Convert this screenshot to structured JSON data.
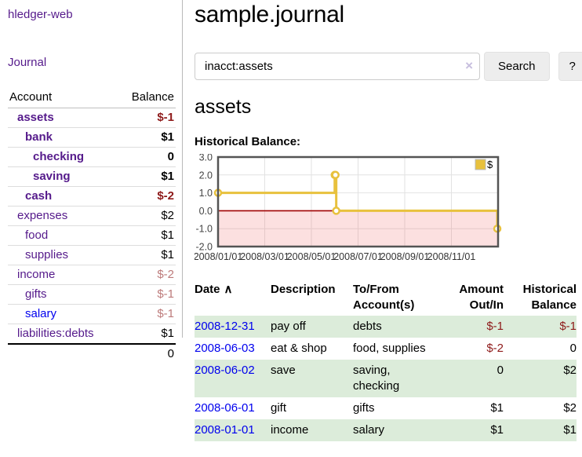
{
  "app": {
    "title": "hledger-web"
  },
  "sidebar": {
    "journal_link": "Journal",
    "table": {
      "headers": {
        "account": "Account",
        "balance": "Balance"
      },
      "rows": [
        {
          "name": "assets",
          "balance": "$-1",
          "depth": 1,
          "bold": true,
          "neg": "strong",
          "link": "purple"
        },
        {
          "name": "bank",
          "balance": "$1",
          "depth": 2,
          "bold": true,
          "neg": "none",
          "link": "purple"
        },
        {
          "name": "checking",
          "balance": "0",
          "depth": 3,
          "bold": true,
          "neg": "none",
          "link": "purple"
        },
        {
          "name": "saving",
          "balance": "$1",
          "depth": 3,
          "bold": true,
          "neg": "none",
          "link": "purple"
        },
        {
          "name": "cash",
          "balance": "$-2",
          "depth": 2,
          "bold": true,
          "neg": "strong",
          "link": "purple"
        },
        {
          "name": "expenses",
          "balance": "$2",
          "depth": 1,
          "bold": false,
          "neg": "none",
          "link": "purple"
        },
        {
          "name": "food",
          "balance": "$1",
          "depth": 2,
          "bold": false,
          "neg": "none",
          "link": "purple"
        },
        {
          "name": "supplies",
          "balance": "$1",
          "depth": 2,
          "bold": false,
          "neg": "none",
          "link": "purple"
        },
        {
          "name": "income",
          "balance": "$-2",
          "depth": 1,
          "bold": false,
          "neg": "muted",
          "link": "purple"
        },
        {
          "name": "gifts",
          "balance": "$-1",
          "depth": 2,
          "bold": false,
          "neg": "muted",
          "link": "purple"
        },
        {
          "name": "salary",
          "balance": "$-1",
          "depth": 2,
          "bold": false,
          "neg": "muted",
          "link": "blue"
        },
        {
          "name": "liabilities:debts",
          "balance": "$1",
          "depth": 1,
          "bold": false,
          "neg": "none",
          "link": "purple"
        }
      ],
      "total": "0"
    }
  },
  "header": {
    "title": "sample.journal"
  },
  "search": {
    "value": "inacct:assets",
    "clear_icon": "×",
    "button": "Search",
    "help_button": "?"
  },
  "account_page": {
    "title": "assets",
    "chart_label": "Historical Balance:"
  },
  "chart_data": {
    "type": "line",
    "step": true,
    "title": "",
    "xlabel": "",
    "ylabel": "",
    "x_range": [
      "2008-01-01",
      "2009-01-01"
    ],
    "ylim": [
      -2,
      3
    ],
    "y_ticks": [
      {
        "label": "3.0",
        "value": 3
      },
      {
        "label": "2.0",
        "value": 2
      },
      {
        "label": "1.0",
        "value": 1
      },
      {
        "label": "0.0",
        "value": 0
      },
      {
        "label": "-1.0",
        "value": -1
      },
      {
        "label": "-2.0",
        "value": -2
      }
    ],
    "x_ticks": [
      {
        "label": "2008/01/01",
        "month": 0
      },
      {
        "label": "2008/03/01",
        "month": 2
      },
      {
        "label": "2008/05/01",
        "month": 4
      },
      {
        "label": "2008/07/01",
        "month": 6
      },
      {
        "label": "2008/09/01",
        "month": 8
      },
      {
        "label": "2008/11/01",
        "month": 10
      }
    ],
    "grid_months": [
      2,
      4,
      6,
      8,
      10
    ],
    "grid_values": [
      2,
      1,
      -1
    ],
    "series": [
      {
        "name": "$",
        "color": "#e8c13d",
        "points": [
          [
            "2008-01-01",
            1
          ],
          [
            "2008-06-01",
            2
          ],
          [
            "2008-06-02",
            2
          ],
          [
            "2008-06-03",
            0
          ],
          [
            "2008-12-31",
            -1
          ]
        ]
      }
    ],
    "legend": {
      "label": "$",
      "position": "top-right"
    },
    "colors": {
      "border": "#545454",
      "grid": "#e2e2e2",
      "zero_line": "#a00000",
      "negative_fill": "rgba(243,115,115,0.22)",
      "axis_text": "#444444"
    }
  },
  "register": {
    "sort_icon": "∧",
    "headers": {
      "date": "Date",
      "description": "Description",
      "accounts": "To/From Account(s)",
      "amount": "Amount Out/In",
      "balance": "Historical Balance"
    },
    "rows": [
      {
        "date": "2008-12-31",
        "description": "pay off",
        "accounts": "debts",
        "amount": "$-1",
        "balance": "$-1",
        "shaded": true,
        "amount_negative": true,
        "balance_negative": true
      },
      {
        "date": "2008-06-03",
        "description": "eat & shop",
        "accounts": "food, supplies",
        "amount": "$-2",
        "balance": "0",
        "shaded": false,
        "amount_negative": true,
        "balance_negative": false
      },
      {
        "date": "2008-06-02",
        "description": "save",
        "accounts": "saving, checking",
        "amount": "0",
        "balance": "$2",
        "shaded": true,
        "amount_negative": false,
        "balance_negative": false
      },
      {
        "date": "2008-06-01",
        "description": "gift",
        "accounts": "gifts",
        "amount": "$1",
        "balance": "$2",
        "shaded": false,
        "amount_negative": false,
        "balance_negative": false
      },
      {
        "date": "2008-01-01",
        "description": "income",
        "accounts": "salary",
        "amount": "$1",
        "balance": "$1",
        "shaded": true,
        "amount_negative": false,
        "balance_negative": false
      }
    ]
  }
}
